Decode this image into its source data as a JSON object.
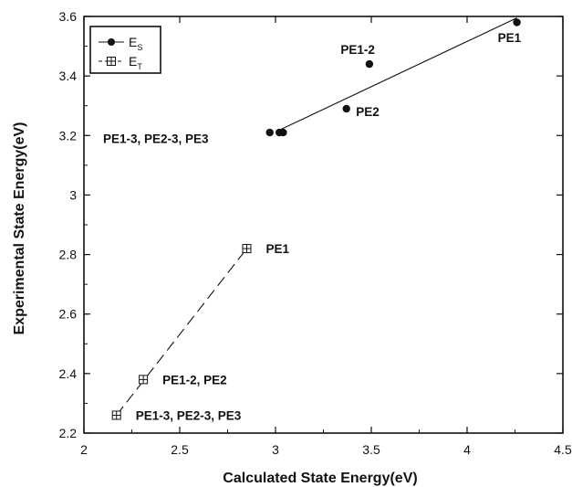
{
  "chart_data": {
    "type": "scatter",
    "xlabel": "Calculated State Energy(eV)",
    "ylabel": "Experimental State Energy(eV)",
    "xlim": [
      2,
      4.5
    ],
    "ylim": [
      2.2,
      3.6
    ],
    "x_ticks": [
      "2",
      "2.5",
      "3",
      "3.5",
      "4",
      "4.5"
    ],
    "y_ticks": [
      "2.2",
      "2.4",
      "2.6",
      "2.8",
      "3",
      "3.2",
      "3.4",
      "3.6"
    ],
    "x_tick_values": [
      2,
      2.5,
      3,
      3.5,
      4,
      4.5
    ],
    "y_tick_values": [
      2.2,
      2.4,
      2.6,
      2.8,
      3.0,
      3.2,
      3.4,
      3.6
    ],
    "legend_position": "top-left",
    "grid": false,
    "series": [
      {
        "name": "E",
        "name_sub": "S",
        "marker": "filled-circle",
        "line": "solid",
        "color": "#111111",
        "points": [
          {
            "x": 2.97,
            "y": 3.21
          },
          {
            "x": 3.02,
            "y": 3.21
          },
          {
            "x": 3.04,
            "y": 3.21
          },
          {
            "x": 3.37,
            "y": 3.29
          },
          {
            "x": 3.49,
            "y": 3.44
          },
          {
            "x": 4.26,
            "y": 3.58
          }
        ],
        "fit_line": {
          "x": [
            3.01,
            4.26
          ],
          "y": [
            3.215,
            3.595
          ]
        }
      },
      {
        "name": "E",
        "name_sub": "T",
        "marker": "open-square-cross",
        "line": "dashed",
        "color": "#111111",
        "points": [
          {
            "x": 2.17,
            "y": 2.26
          },
          {
            "x": 2.31,
            "y": 2.38
          },
          {
            "x": 2.85,
            "y": 2.82
          }
        ],
        "fit_line": {
          "x": [
            2.17,
            2.85
          ],
          "y": [
            2.26,
            2.82
          ]
        }
      }
    ],
    "annotations": [
      {
        "text": "PE1-2",
        "x": 3.34,
        "y": 3.49
      },
      {
        "text": "PE1",
        "x": 4.16,
        "y": 3.53
      },
      {
        "text": "PE2",
        "x": 3.42,
        "y": 3.28
      },
      {
        "text": "PE1-3, PE2-3, PE3",
        "x": 2.1,
        "y": 3.19
      },
      {
        "text": "PE1",
        "x": 2.95,
        "y": 2.82
      },
      {
        "text": "PE1-2, PE2",
        "x": 2.41,
        "y": 2.38
      },
      {
        "text": "PE1-3, PE2-3, PE3",
        "x": 2.27,
        "y": 2.26
      }
    ]
  }
}
